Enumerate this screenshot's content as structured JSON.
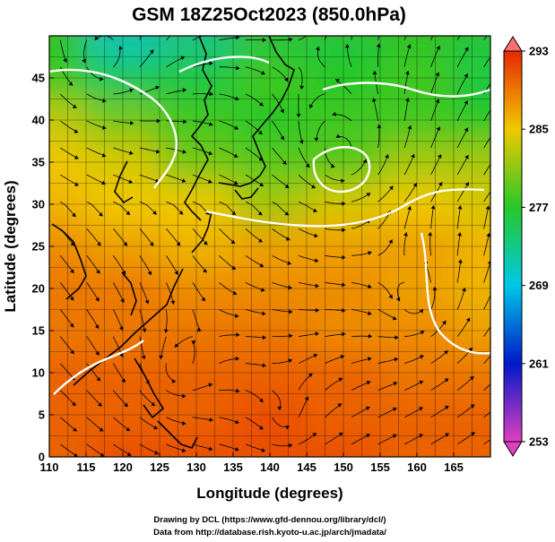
{
  "chart_data": {
    "type": "heatmap",
    "title": "GSM 18Z25Oct2023 (850.0hPa)",
    "xlabel": "Longitude (degrees)",
    "ylabel": "Latitude  (degrees)",
    "xlim": [
      110,
      170
    ],
    "ylim": [
      0,
      50
    ],
    "grid": true,
    "x_ticks": [
      "110",
      "115",
      "120",
      "125",
      "130",
      "135",
      "140",
      "145",
      "150",
      "155",
      "160",
      "165"
    ],
    "y_ticks": [
      "0",
      "5",
      "10",
      "15",
      "20",
      "25",
      "30",
      "35",
      "40",
      "45"
    ],
    "colorbar": {
      "labels": [
        "293",
        "285",
        "277",
        "269",
        "261",
        "253"
      ],
      "min": 253,
      "max": 293,
      "colors": [
        "#e040c0",
        "#0018c8",
        "#00c8e8",
        "#28c828",
        "#f0c800",
        "#e82800"
      ]
    },
    "temperature_field": {
      "lats": [
        50,
        45,
        40,
        35,
        30,
        25,
        20,
        15,
        10,
        5,
        0
      ],
      "lons": [
        110,
        120,
        130,
        140,
        150,
        160,
        170
      ],
      "values": [
        [
          277,
          271,
          273,
          276,
          276,
          277,
          276
        ],
        [
          278,
          275,
          276,
          278,
          277,
          278,
          276
        ],
        [
          283,
          280,
          278,
          277,
          278,
          278,
          277
        ],
        [
          285,
          284,
          280,
          279,
          279,
          282,
          282
        ],
        [
          286,
          285,
          285,
          282,
          284,
          285,
          284
        ],
        [
          288,
          287,
          286,
          287,
          287,
          287,
          286
        ],
        [
          289,
          289,
          288,
          288,
          288,
          287,
          286
        ],
        [
          289,
          289,
          289,
          289,
          288,
          288,
          287
        ],
        [
          290,
          290,
          290,
          290,
          290,
          289,
          289
        ],
        [
          290,
          290,
          290,
          291,
          290,
          290,
          290
        ],
        [
          290,
          291,
          291,
          291,
          291,
          290,
          290
        ]
      ]
    }
  },
  "credits": {
    "line1": "Drawing by DCL (https://www.gfd-dennou.org/library/dcl/)",
    "line2": "Data from http://database.rish.kyoto-u.ac.jp/arch/jmadata/"
  }
}
